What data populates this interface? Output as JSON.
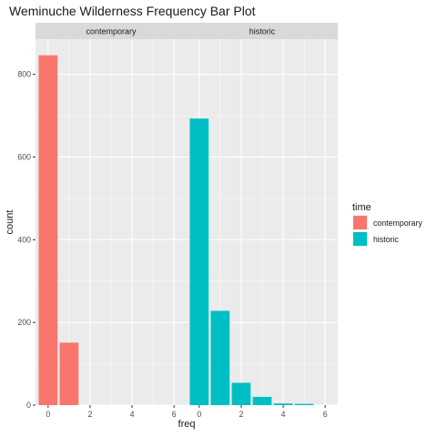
{
  "chart_data": {
    "type": "bar",
    "title": "Weminuche Wilderness Frequency Bar Plot",
    "xlabel": "freq",
    "ylabel": "count",
    "x_ticks": [
      0,
      2,
      4,
      6
    ],
    "y_ticks": [
      0,
      200,
      400,
      600,
      800
    ],
    "xlim": [
      -0.6,
      6.6
    ],
    "ylim": [
      0,
      885
    ],
    "legend": {
      "title": "time",
      "position": "right",
      "entries": [
        {
          "label": "contemporary",
          "color": "#F8766D"
        },
        {
          "label": "historic",
          "color": "#00BFC4"
        }
      ]
    },
    "panels": [
      {
        "strip": "contemporary",
        "color": "#F8766D",
        "bars": [
          {
            "x": 0,
            "count": 846
          },
          {
            "x": 1,
            "count": 151
          }
        ]
      },
      {
        "strip": "historic",
        "color": "#00BFC4",
        "bars": [
          {
            "x": 0,
            "count": 693
          },
          {
            "x": 1,
            "count": 228
          },
          {
            "x": 2,
            "count": 54
          },
          {
            "x": 3,
            "count": 20
          },
          {
            "x": 4,
            "count": 4
          },
          {
            "x": 5,
            "count": 3
          }
        ]
      }
    ],
    "grid": true,
    "background_color": "#EBEBEB",
    "strip_color": "#D9D9D9"
  }
}
